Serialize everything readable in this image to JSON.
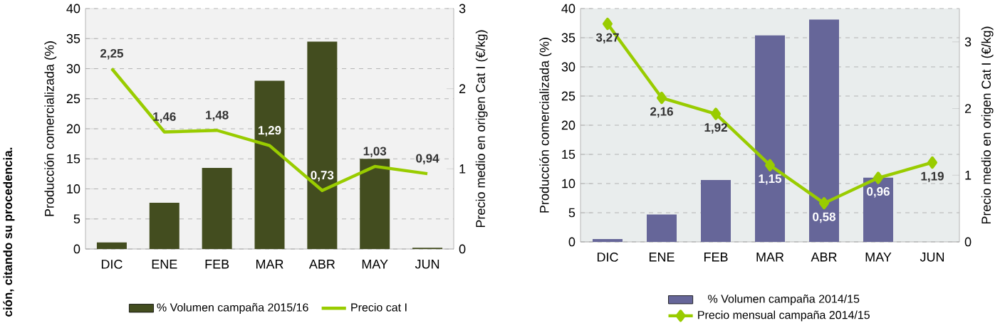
{
  "chart_data": [
    {
      "type": "bar",
      "categories": [
        "DIC",
        "ENE",
        "FEB",
        "MAR",
        "ABR",
        "MAY",
        "JUN"
      ],
      "series": [
        {
          "name": "% Volumen campaña 2015/16",
          "color": "#434d1f",
          "values": [
            1.1,
            7.7,
            13.5,
            28,
            34.5,
            15,
            0.2
          ]
        },
        {
          "name": "Precio cat I",
          "type": "line",
          "axis": "y2",
          "color": "#99cc00",
          "values": [
            2.25,
            1.46,
            1.48,
            1.29,
            0.73,
            1.03,
            0.94
          ],
          "value_labels": [
            "2,25",
            "1,46",
            "1,48",
            "1,29",
            "0,73",
            "1,03",
            "0,94"
          ]
        }
      ],
      "ylabel": "Producción comercializada (%)",
      "y2label": "Precio medio en origen Cat I (€/kg)",
      "ylim": [
        0,
        40
      ],
      "yticks": [
        0,
        5,
        10,
        15,
        20,
        25,
        30,
        35,
        40
      ],
      "y2lim": [
        0,
        3
      ],
      "y2ticks": [
        0,
        1,
        2,
        3
      ],
      "grid": "y",
      "legend": "bottom",
      "annotations": [
        "ción, citando su procedencia."
      ]
    },
    {
      "type": "bar",
      "categories": [
        "DIC",
        "ENE",
        "FEB",
        "MAR",
        "ABR",
        "MAY",
        "JUN"
      ],
      "series": [
        {
          "name": "% Volumen campaña 2014/15",
          "color": "#666699",
          "values": [
            0.5,
            4.7,
            10.6,
            35.4,
            38.1,
            11,
            0
          ]
        },
        {
          "name": "Precio mensual campaña 2014/15",
          "type": "line",
          "axis": "y2",
          "color": "#99cc00",
          "marker": "diamond",
          "values": [
            3.27,
            2.16,
            1.92,
            1.15,
            0.58,
            0.96,
            1.19
          ],
          "value_labels": [
            "3,27",
            "2,16",
            "1,92",
            "1,15",
            "0,58",
            "0,96",
            "1,19"
          ]
        }
      ],
      "ylabel": "Producción comercializada (%)",
      "y2label": "Precio medio en origen Cat I (€/kg)",
      "ylim": [
        0,
        40
      ],
      "yticks": [
        0,
        5,
        10,
        15,
        20,
        25,
        30,
        35,
        40
      ],
      "y2lim": [
        0,
        3.5
      ],
      "y2ticks": [
        0,
        1,
        2,
        3
      ],
      "grid": "y",
      "legend": "bottom"
    }
  ]
}
